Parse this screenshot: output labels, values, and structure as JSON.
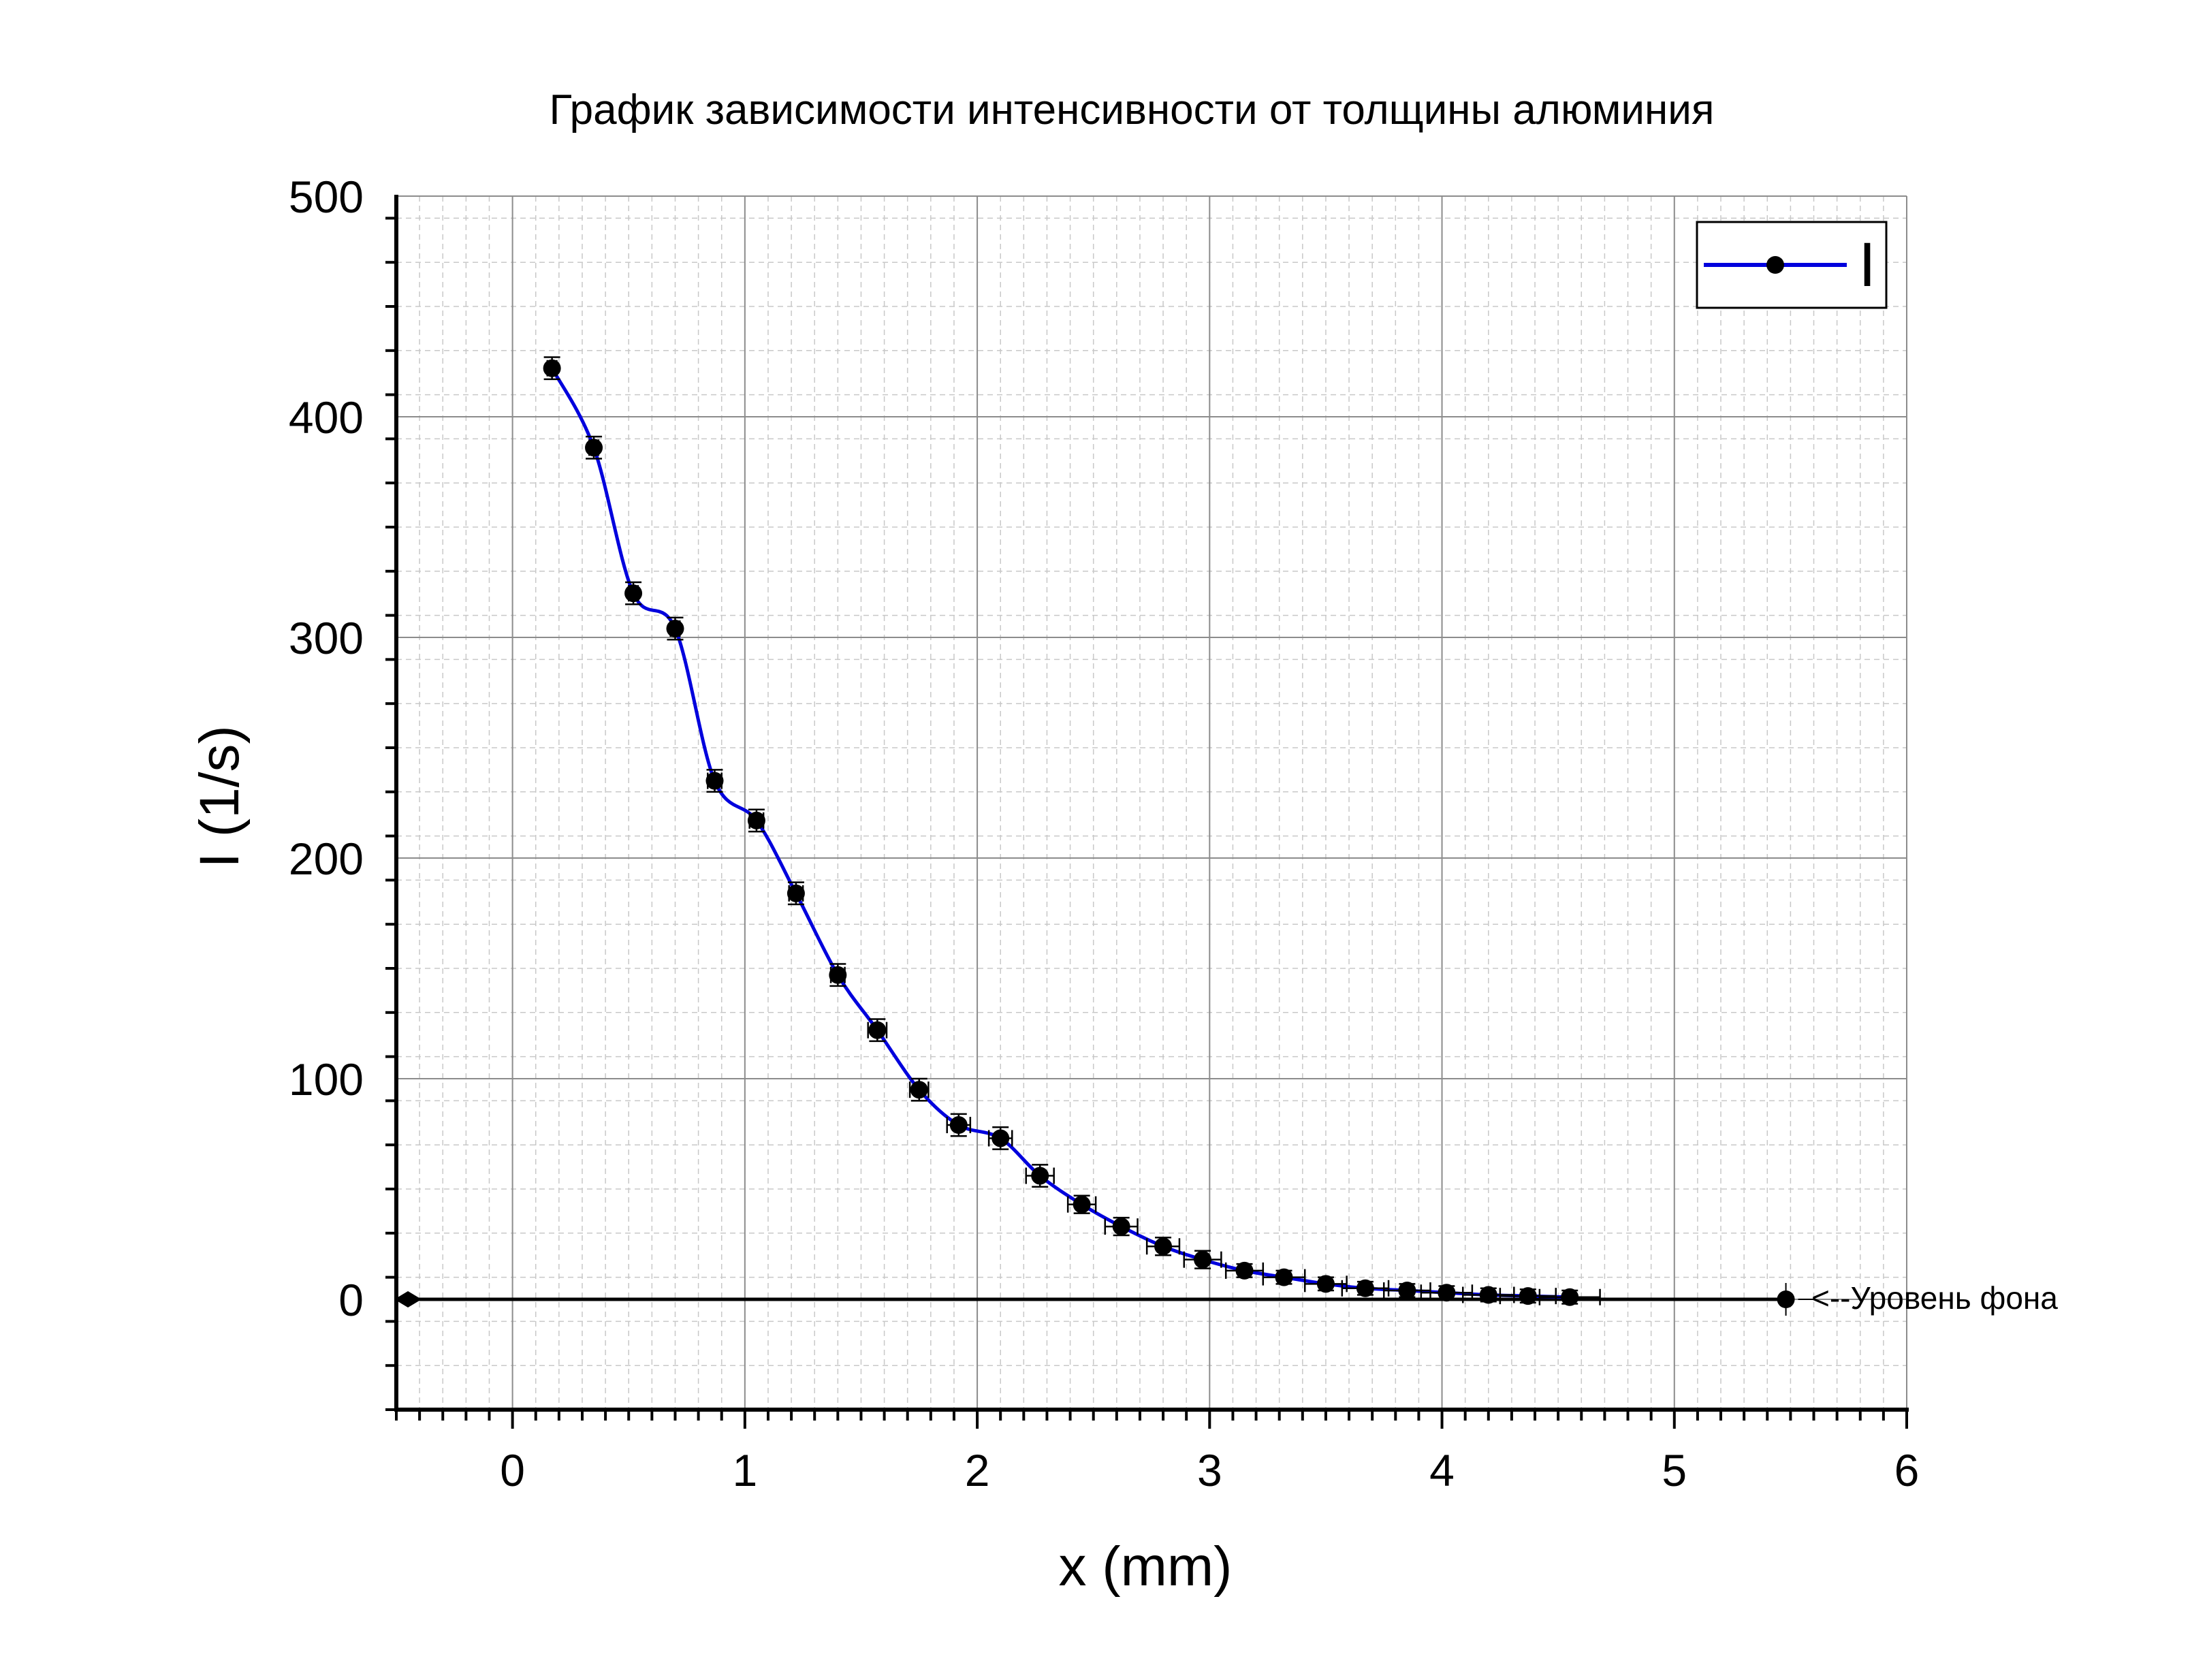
{
  "chart_data": {
    "type": "scatter",
    "title": "График зависимости интенсивности от толщины алюминия",
    "xlabel": "x (mm)",
    "ylabel": "I (1/s)",
    "xlim": [
      -0.5,
      6
    ],
    "ylim": [
      -50,
      500
    ],
    "xticks": [
      "0",
      "1",
      "2",
      "3",
      "4",
      "5",
      "6"
    ],
    "yticks": [
      "0",
      "100",
      "200",
      "300",
      "400",
      "500"
    ],
    "xtick_values": [
      0,
      1,
      2,
      3,
      4,
      5,
      6
    ],
    "ytick_values": [
      0,
      100,
      200,
      300,
      400,
      500
    ],
    "grid": "major and minor",
    "legend_position": "top-right",
    "series": [
      {
        "name": "I",
        "color": "#0000dd",
        "marker_color": "#000000",
        "x": [
          0.17,
          0.35,
          0.52,
          0.7,
          0.87,
          1.05,
          1.22,
          1.4,
          1.57,
          1.75,
          1.92,
          2.1,
          2.27,
          2.45,
          2.62,
          2.8,
          2.97,
          3.15,
          3.32,
          3.5,
          3.67,
          3.85,
          4.02,
          4.2,
          4.37,
          4.55
        ],
        "y": [
          422,
          386,
          320,
          304,
          235,
          217,
          184,
          147,
          122,
          95,
          79,
          73,
          56,
          43,
          33,
          24,
          18,
          13,
          10,
          7,
          5,
          4,
          3,
          2,
          1.5,
          1
        ],
        "y_err": [
          5,
          5,
          5,
          5,
          5,
          5,
          5,
          5,
          5,
          5,
          5,
          5,
          5,
          4,
          4,
          4,
          4,
          3,
          3,
          3,
          3,
          3,
          3,
          3,
          3,
          3
        ],
        "x_err": [
          0.02,
          0.02,
          0.02,
          0.02,
          0.03,
          0.03,
          0.03,
          0.03,
          0.04,
          0.04,
          0.05,
          0.05,
          0.06,
          0.06,
          0.07,
          0.07,
          0.08,
          0.08,
          0.09,
          0.09,
          0.1,
          0.1,
          0.11,
          0.11,
          0.12,
          0.13
        ]
      }
    ],
    "background_level": {
      "label": "<--Уровень фона",
      "y": 0,
      "x_range": [
        -0.45,
        5.48
      ]
    }
  }
}
